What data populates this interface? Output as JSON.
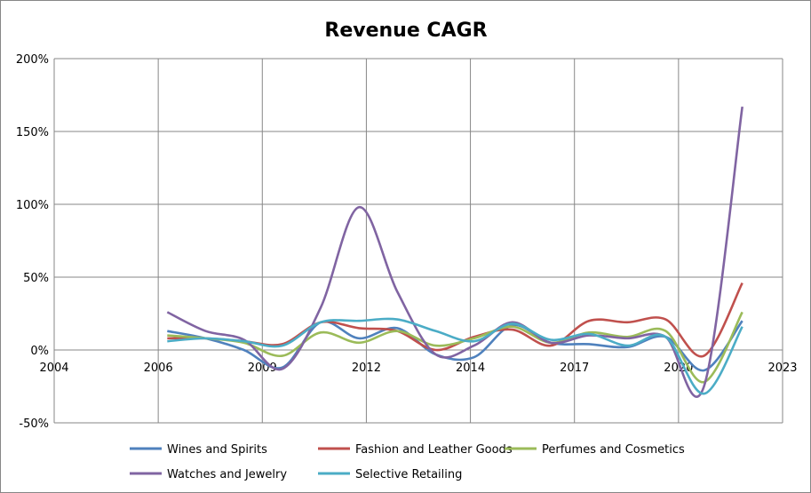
{
  "chart_data": {
    "type": "line",
    "title": "Revenue CAGR",
    "xlabel": "",
    "ylabel": "",
    "xlim": [
      2004,
      2023
    ],
    "x_tick_labels": [
      "2004",
      "2006",
      "2009",
      "2012",
      "2014",
      "2017",
      "2020",
      "2023"
    ],
    "ylim": [
      -50,
      200
    ],
    "y_ticks": [
      -50,
      0,
      50,
      100,
      150,
      200
    ],
    "y_tick_labels": [
      "-50%",
      "0%",
      "50%",
      "100%",
      "150%",
      "200%"
    ],
    "grid": true,
    "legend": "bottom",
    "x": [
      2006.95,
      2007.95,
      2008.95,
      2009.95,
      2010.95,
      2011.95,
      2012.95,
      2013.95,
      2014.95,
      2015.95,
      2016.95,
      2017.95,
      2018.95,
      2019.95,
      2020.95,
      2021.95
    ],
    "series": [
      {
        "name": "Wines and Spirits",
        "color": "#4F81BD",
        "values": [
          13,
          8,
          0,
          -12,
          19,
          8,
          15,
          -3,
          -5,
          17,
          5,
          4,
          2,
          9,
          -14,
          20
        ]
      },
      {
        "name": "Fashion and Leather Goods",
        "color": "#C0504D",
        "values": [
          8,
          8,
          6,
          4,
          19,
          15,
          13,
          0,
          9,
          14,
          3,
          20,
          19,
          21,
          -4,
          46
        ]
      },
      {
        "name": "Perfumes and Cosmetics",
        "color": "#9BBB59",
        "values": [
          10,
          8,
          5,
          -4,
          12,
          5,
          13,
          3,
          8,
          16,
          5,
          12,
          9,
          13,
          -22,
          26
        ]
      },
      {
        "name": "Watches and Jewelry",
        "color": "#8064A2",
        "values": [
          26,
          13,
          7,
          -13,
          29,
          98,
          40,
          -3,
          3,
          19,
          5,
          10,
          8,
          9,
          -25,
          167
        ]
      },
      {
        "name": "Selective Retailing",
        "color": "#4BACC6",
        "values": [
          6,
          8,
          6,
          3,
          19,
          20,
          21,
          13,
          6,
          18,
          7,
          11,
          3,
          9,
          -30,
          16
        ]
      }
    ]
  }
}
